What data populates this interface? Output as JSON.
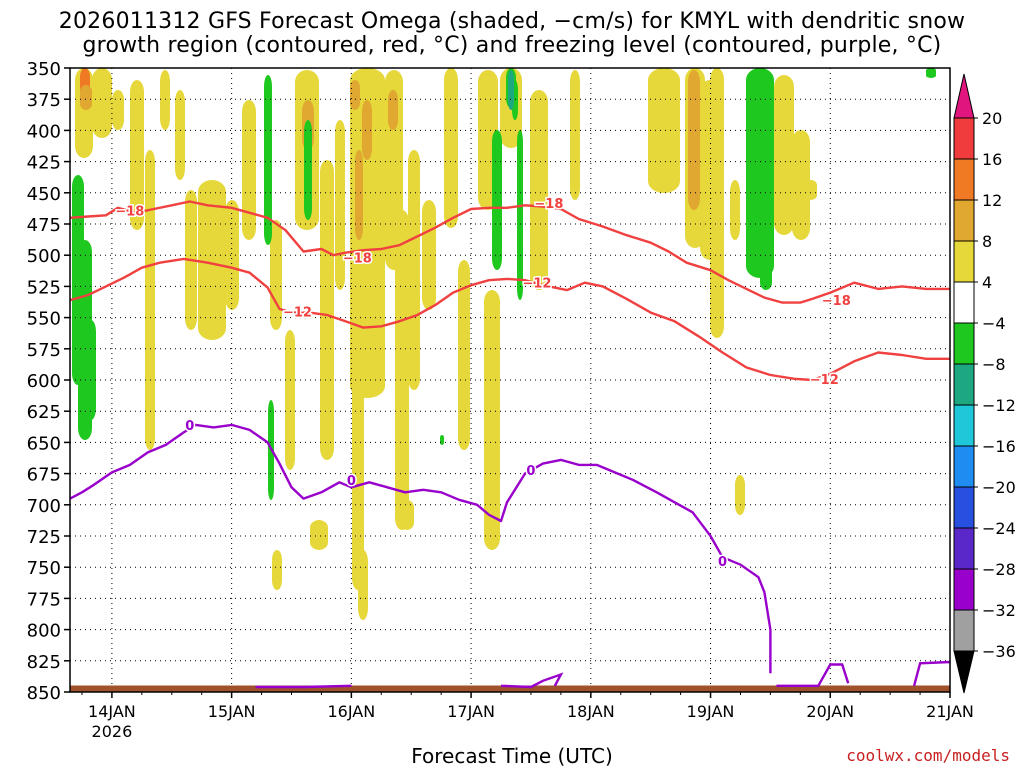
{
  "title": {
    "line1": "2026011312 GFS Forecast Omega (shaded, −cm/s) for KMYL with dendritic snow",
    "line2": "growth region (contoured, red, °C) and freezing level (contoured, purple, °C)"
  },
  "xlabel": "Forecast Time (UTC)",
  "credit": "coolwx.com/models",
  "colors": {
    "dgz_contour": "#f04040",
    "freezing_contour": "#9900cc",
    "terrain": "#a0522d",
    "grid": "#000000"
  },
  "chart_data": {
    "type": "heatmap",
    "y_axis": {
      "unit": "hPa",
      "levels": [
        350,
        375,
        400,
        425,
        450,
        475,
        500,
        525,
        550,
        575,
        600,
        625,
        650,
        675,
        700,
        725,
        750,
        775,
        800,
        825,
        850
      ],
      "range": [
        850,
        350
      ]
    },
    "x_axis": {
      "ticks": [
        {
          "label": "14JAN",
          "sublabel": "2026"
        },
        {
          "label": "15JAN",
          "sublabel": ""
        },
        {
          "label": "16JAN",
          "sublabel": ""
        },
        {
          "label": "17JAN",
          "sublabel": ""
        },
        {
          "label": "18JAN",
          "sublabel": ""
        },
        {
          "label": "19JAN",
          "sublabel": ""
        },
        {
          "label": "20JAN",
          "sublabel": ""
        },
        {
          "label": "21JAN",
          "sublabel": ""
        }
      ],
      "range_days": [
        -0.35,
        7.0
      ]
    },
    "colorbar": {
      "tick_labels": [
        "20",
        "16",
        "12",
        "8",
        "4",
        "−4",
        "−8",
        "−12",
        "−16",
        "−20",
        "−24",
        "−28",
        "−32",
        "−36"
      ],
      "bins": [
        {
          "label": "> 20",
          "color": "#e0157d"
        },
        {
          "label": "16 to 20",
          "color": "#f03c3c"
        },
        {
          "label": "12 to 16",
          "color": "#ef7a23"
        },
        {
          "label": "8 to 12",
          "color": "#e0a830"
        },
        {
          "label": "4 to 8",
          "color": "#e6d83a"
        },
        {
          "label": "-4 to 4",
          "color": "#ffffff"
        },
        {
          "label": "-8 to -4",
          "color": "#1ec81e"
        },
        {
          "label": "-12 to -8",
          "color": "#1ea882"
        },
        {
          "label": "-16 to -12",
          "color": "#1ec8d8"
        },
        {
          "label": "-20 to -16",
          "color": "#1e8cf0"
        },
        {
          "label": "-24 to -20",
          "color": "#2850e0"
        },
        {
          "label": "-28 to -24",
          "color": "#5a28c8"
        },
        {
          "label": "-32 to -28",
          "color": "#9900cc"
        },
        {
          "label": "-36 to -32",
          "color": "#a0a0a0"
        },
        {
          "label": "< -36",
          "color": "#000000"
        }
      ]
    },
    "contours": [
      {
        "kind": "dgz",
        "value": -18,
        "label": "−18",
        "points": [
          [
            -0.35,
            470
          ],
          [
            -0.2,
            469
          ],
          [
            -0.05,
            468
          ],
          [
            0.05,
            462
          ],
          [
            0.2,
            466
          ],
          [
            0.35,
            463
          ],
          [
            0.5,
            460
          ],
          [
            0.65,
            457
          ],
          [
            0.8,
            460
          ],
          [
            1.0,
            462
          ],
          [
            1.15,
            466
          ],
          [
            1.3,
            470
          ],
          [
            1.45,
            480
          ],
          [
            1.6,
            497
          ],
          [
            1.75,
            495
          ],
          [
            1.85,
            500
          ],
          [
            1.95,
            498
          ],
          [
            2.1,
            496
          ],
          [
            2.25,
            495
          ],
          [
            2.4,
            492
          ],
          [
            2.55,
            485
          ],
          [
            2.7,
            478
          ],
          [
            2.85,
            470
          ],
          [
            3.0,
            463
          ],
          [
            3.15,
            462
          ],
          [
            3.3,
            462
          ],
          [
            3.45,
            460
          ],
          [
            3.6,
            461
          ],
          [
            3.75,
            463
          ],
          [
            3.9,
            471
          ],
          [
            4.1,
            477
          ],
          [
            4.3,
            484
          ],
          [
            4.5,
            490
          ],
          [
            4.65,
            497
          ],
          [
            4.8,
            506
          ],
          [
            5.0,
            512
          ],
          [
            5.15,
            520
          ],
          [
            5.3,
            527
          ],
          [
            5.45,
            534
          ],
          [
            5.6,
            538
          ],
          [
            5.75,
            538
          ],
          [
            5.85,
            535
          ],
          [
            6.0,
            530
          ],
          [
            6.2,
            522
          ],
          [
            6.4,
            527
          ],
          [
            6.6,
            525
          ],
          [
            6.8,
            527
          ],
          [
            7.0,
            527
          ]
        ],
        "label_positions": [
          [
            0.15,
            464
          ],
          [
            2.05,
            502
          ],
          [
            3.65,
            458
          ],
          [
            6.05,
            536
          ]
        ]
      },
      {
        "kind": "dgz",
        "value": -12,
        "label": "−12",
        "points": [
          [
            -0.35,
            536
          ],
          [
            -0.2,
            532
          ],
          [
            -0.05,
            525
          ],
          [
            0.1,
            518
          ],
          [
            0.25,
            510
          ],
          [
            0.4,
            506
          ],
          [
            0.6,
            503
          ],
          [
            0.8,
            506
          ],
          [
            1.0,
            510
          ],
          [
            1.15,
            514
          ],
          [
            1.3,
            526
          ],
          [
            1.4,
            543
          ],
          [
            1.5,
            546
          ],
          [
            1.65,
            546
          ],
          [
            1.8,
            548
          ],
          [
            1.95,
            553
          ],
          [
            2.1,
            558
          ],
          [
            2.25,
            557
          ],
          [
            2.4,
            553
          ],
          [
            2.55,
            548
          ],
          [
            2.7,
            540
          ],
          [
            2.85,
            530
          ],
          [
            3.0,
            524
          ],
          [
            3.15,
            520
          ],
          [
            3.3,
            519
          ],
          [
            3.45,
            520
          ],
          [
            3.6,
            524
          ],
          [
            3.8,
            528
          ],
          [
            3.95,
            522
          ],
          [
            4.1,
            525
          ],
          [
            4.3,
            535
          ],
          [
            4.5,
            546
          ],
          [
            4.7,
            553
          ],
          [
            4.9,
            565
          ],
          [
            5.1,
            578
          ],
          [
            5.3,
            590
          ],
          [
            5.5,
            596
          ],
          [
            5.7,
            599
          ],
          [
            5.85,
            600
          ],
          [
            6.0,
            595
          ],
          [
            6.2,
            585
          ],
          [
            6.4,
            578
          ],
          [
            6.6,
            580
          ],
          [
            6.8,
            583
          ],
          [
            7.0,
            583
          ]
        ],
        "label_positions": [
          [
            1.55,
            545
          ],
          [
            3.55,
            522
          ],
          [
            5.95,
            599
          ]
        ]
      },
      {
        "kind": "freezing",
        "value": 0,
        "label": "0",
        "points": [
          [
            -0.35,
            695
          ],
          [
            -0.25,
            690
          ],
          [
            -0.15,
            684
          ],
          [
            0.0,
            674
          ],
          [
            0.15,
            668
          ],
          [
            0.3,
            658
          ],
          [
            0.45,
            652
          ],
          [
            0.6,
            642
          ],
          [
            0.7,
            636
          ],
          [
            0.85,
            638
          ],
          [
            1.0,
            636
          ],
          [
            1.15,
            640
          ],
          [
            1.3,
            650
          ],
          [
            1.4,
            667
          ],
          [
            1.5,
            686
          ],
          [
            1.6,
            695
          ],
          [
            1.75,
            690
          ],
          [
            1.9,
            682
          ],
          [
            2.0,
            686
          ],
          [
            2.15,
            682
          ],
          [
            2.3,
            686
          ],
          [
            2.45,
            690
          ],
          [
            2.6,
            688
          ],
          [
            2.75,
            690
          ],
          [
            2.9,
            696
          ],
          [
            3.05,
            700
          ],
          [
            3.15,
            708
          ],
          [
            3.25,
            713
          ],
          [
            3.3,
            698
          ],
          [
            3.45,
            675
          ],
          [
            3.6,
            667
          ],
          [
            3.75,
            664
          ],
          [
            3.9,
            668
          ],
          [
            4.05,
            668
          ],
          [
            4.2,
            674
          ],
          [
            4.35,
            680
          ],
          [
            4.55,
            690
          ],
          [
            4.7,
            698
          ],
          [
            4.85,
            706
          ],
          [
            5.0,
            725
          ],
          [
            5.1,
            742
          ],
          [
            5.25,
            748
          ],
          [
            5.4,
            758
          ],
          [
            5.45,
            770
          ],
          [
            5.5,
            800
          ],
          [
            5.5,
            835
          ]
        ],
        "label_positions": [
          [
            0.65,
            636
          ],
          [
            2.0,
            680
          ],
          [
            3.5,
            672
          ],
          [
            5.1,
            745
          ]
        ]
      }
    ],
    "terrain_top_hPa": 848
  }
}
